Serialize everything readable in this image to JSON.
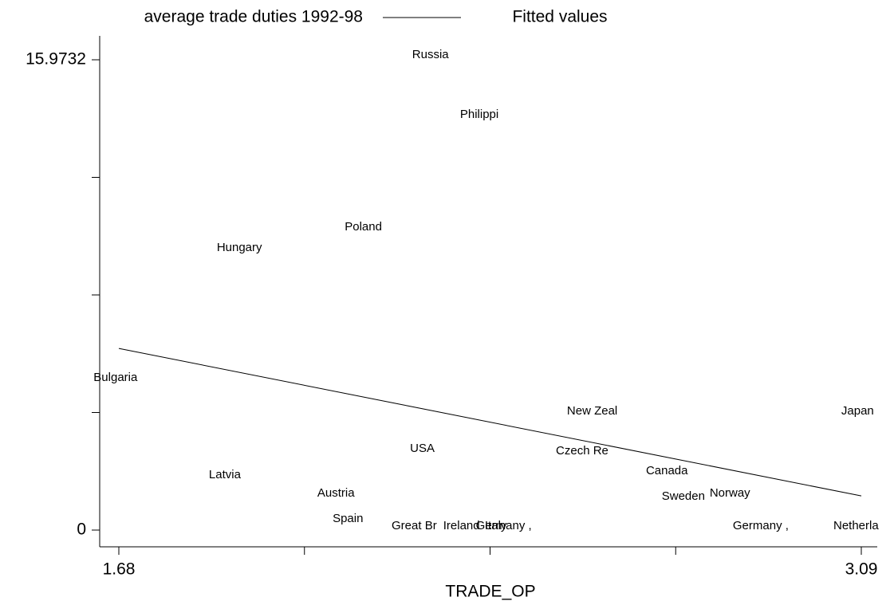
{
  "chart_data": {
    "type": "scatter",
    "xlabel": "TRADE_OP",
    "xlim": [
      1.68,
      3.09
    ],
    "xticks": [
      1.68,
      3.09
    ],
    "xtick_marks": [
      2.0325,
      2.385,
      2.7375
    ],
    "ylim": [
      0,
      15.9732
    ],
    "yticks": [
      0,
      15.9732
    ],
    "ytick_marks": [
      3.9933,
      7.9866,
      11.9799
    ],
    "series": [
      {
        "name": "average trade duties 1992-98",
        "color": "#000000",
        "labels": [
          "Russia",
          "Philippi",
          "Poland",
          "Hungary",
          "Bulgaria",
          "New Zeal",
          "Japan",
          "USA",
          "Czech Re",
          "Latvia",
          "Canada",
          "Austria",
          "Sweden",
          "Norway",
          "Spain",
          "Great Br",
          "Ireland",
          "Germany ,",
          "Italy",
          "Germany ,",
          "Netherla"
        ],
        "x": [
          2.237,
          2.328,
          2.109,
          1.866,
          1.632,
          2.531,
          3.052,
          2.233,
          2.51,
          1.851,
          2.681,
          2.057,
          2.711,
          2.802,
          2.086,
          2.198,
          2.296,
          2.358,
          2.375,
          2.846,
          3.037
        ],
        "values": [
          16.13,
          14.1,
          10.29,
          9.58,
          5.17,
          4.03,
          4.03,
          2.76,
          2.68,
          1.87,
          2.0,
          1.25,
          1.14,
          1.25,
          0.38,
          0.14,
          0.14,
          0.14,
          0.14,
          0.14,
          0.14
        ]
      },
      {
        "name": "Fitted values",
        "type": "line",
        "color": "#000000",
        "x": [
          1.68,
          3.09
        ],
        "values": [
          6.17,
          1.16
        ]
      }
    ]
  }
}
